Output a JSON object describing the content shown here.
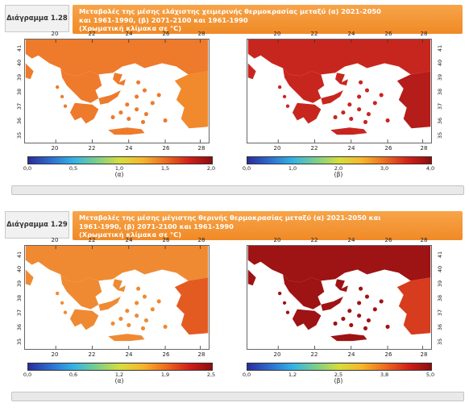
{
  "figures": [
    {
      "label": "Διάγραμμα 1.28",
      "caption_lines": [
        "Μεταβολές της μέσης ελάχιστης χειμερινής θερμοκρασίας μεταξύ (α) 2021-2050",
        "και 1961-1990, (β) 2071-2100 και 1961-1990",
        "(Χρωματική κλίμακα σε °C)"
      ],
      "lon_ticks": [
        "20",
        "22",
        "24",
        "26",
        "28"
      ],
      "lat_ticks": [
        "41",
        "40",
        "39",
        "38",
        "37",
        "36",
        "35"
      ],
      "panels": [
        {
          "label": "(α)",
          "scale": [
            "0,0",
            "0,5",
            "1,0",
            "1,5",
            "2,0"
          ],
          "land_color": "#ee7a2c",
          "hot_color": "#f08a2c"
        },
        {
          "label": "(β)",
          "scale": [
            "0,0",
            "1,0",
            "2,0",
            "3,0",
            "4,0"
          ],
          "land_color": "#c7261f",
          "hot_color": "#b41d1a"
        }
      ]
    },
    {
      "label": "Διάγραμμα 1.29",
      "caption_lines": [
        "Μεταβολές της μέσης μέγιστης θερινής θερμοκρασίας μεταξύ (α) 2021-2050 και",
        "1961-1990, (β) 2071-2100 και 1961-1990",
        "(Χρωματική κλίμακα σε °C)"
      ],
      "lon_ticks": [
        "20",
        "22",
        "24",
        "26",
        "28"
      ],
      "lat_ticks": [
        "41",
        "40",
        "39",
        "38",
        "37",
        "36",
        "35"
      ],
      "panels": [
        {
          "label": "(α)",
          "scale": [
            "0,0",
            "0,6",
            "1,2",
            "1,9",
            "2,5"
          ],
          "land_color": "#ef8a33",
          "hot_color": "#e45b22"
        },
        {
          "label": "(β)",
          "scale": [
            "0,0",
            "1,2",
            "2,5",
            "3,8",
            "5,0"
          ],
          "land_color": "#9e1313",
          "hot_color": "#d63c1d"
        }
      ]
    }
  ]
}
